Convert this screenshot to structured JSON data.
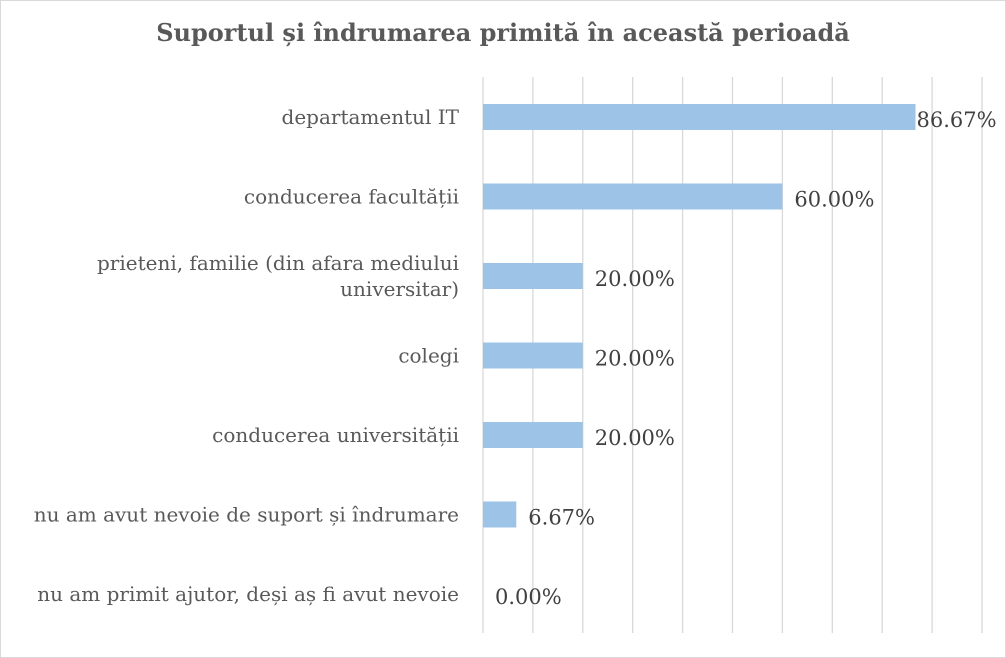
{
  "chart_data": {
    "type": "bar",
    "orientation": "horizontal",
    "title": "Suportul și îndrumarea primită în această perioadă",
    "categories": [
      [
        "departamentul IT"
      ],
      [
        "conducerea facultății"
      ],
      [
        "prieteni, familie (din afara mediului",
        "universitar)"
      ],
      [
        "colegi"
      ],
      [
        "conducerea universității"
      ],
      [
        "nu am avut nevoie de suport și îndrumare"
      ],
      [
        "nu am primit ajutor, deși aș fi avut nevoie"
      ]
    ],
    "values": [
      86.67,
      60.0,
      20.0,
      20.0,
      20.0,
      6.67,
      0.0
    ],
    "value_labels": [
      "86.67%",
      "60.00%",
      "20.00%",
      "20.00%",
      "20.00%",
      "6.67%",
      "0.00%"
    ],
    "xlim": [
      0,
      100
    ],
    "grid": true,
    "bar_color": "#9dc3e6",
    "grid_color": "#d9d9d9"
  }
}
